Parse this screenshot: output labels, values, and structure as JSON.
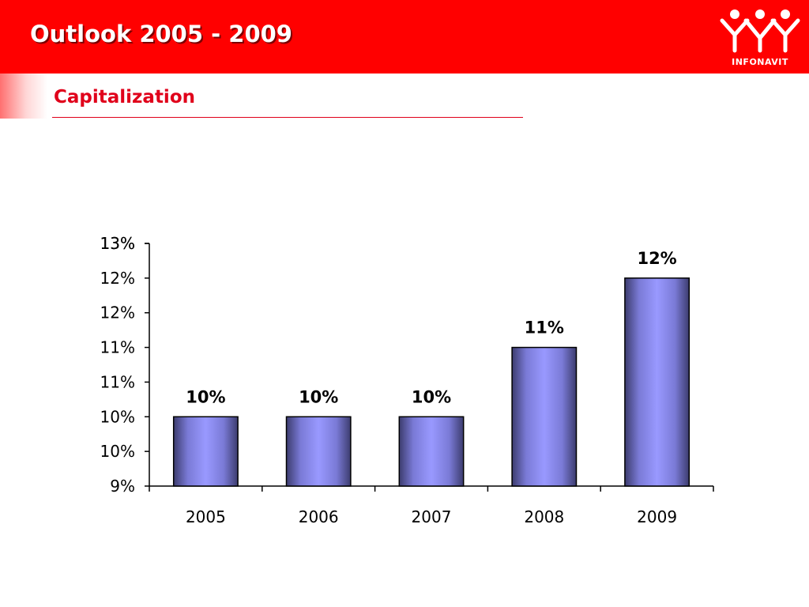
{
  "slide": {
    "title": "Outlook 2005 - 2009",
    "subtitle": "Capitalization",
    "logo_text": "INFONAVIT"
  },
  "colors": {
    "header": "#ff0000",
    "subtitle": "#e0001a",
    "bar_light": "#9999ff",
    "bar_dark": "#3c3c6e"
  },
  "chart_data": {
    "type": "bar",
    "categories": [
      "2005",
      "2006",
      "2007",
      "2008",
      "2009"
    ],
    "values": [
      10.0,
      10.0,
      10.0,
      11.0,
      12.0
    ],
    "data_labels": [
      "10%",
      "10%",
      "10%",
      "11%",
      "12%"
    ],
    "y_tick_labels": [
      "9%",
      "10%",
      "10%",
      "11%",
      "11%",
      "12%",
      "12%",
      "13%"
    ],
    "y_ticks": [
      9.0,
      9.5,
      10.0,
      10.5,
      11.0,
      11.5,
      12.0,
      12.5
    ],
    "ylim": [
      9.0,
      12.5
    ],
    "grid": false,
    "legend": "none"
  }
}
